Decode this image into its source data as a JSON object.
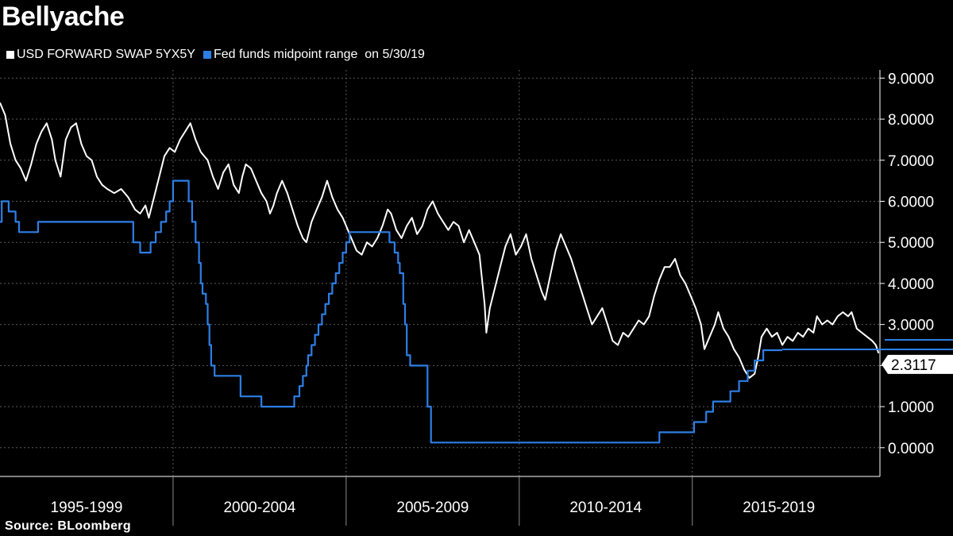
{
  "chart_data": {
    "type": "line",
    "title": "Bellyache",
    "source": "Source:  BLoomberg",
    "x_range": [
      1994.0,
      2019.42
    ],
    "ylim": [
      -0.7,
      9.2
    ],
    "y_ticks": [
      "9.0000",
      "8.0000",
      "7.0000",
      "6.0000",
      "5.0000",
      "4.0000",
      "3.0000",
      "2.0000",
      "1.0000",
      "0.0000"
    ],
    "x_categories": [
      {
        "label": "1995-1999",
        "start": 1994.0,
        "end": 1999.0
      },
      {
        "label": "2000-2004",
        "start": 1999.0,
        "end": 2004.0
      },
      {
        "label": "2005-2009",
        "start": 2004.0,
        "end": 2009.0
      },
      {
        "label": "2010-2014",
        "start": 2009.0,
        "end": 2014.0
      },
      {
        "label": "2015-2019",
        "start": 2014.0,
        "end": 2019.0
      }
    ],
    "last_value_label": "2.3117",
    "series": [
      {
        "name": "USD FORWARD SWAP 5YX5Y",
        "color": "#ffffff",
        "style": "line",
        "points": [
          [
            1994.0,
            8.4
          ],
          [
            1994.15,
            8.1
          ],
          [
            1994.3,
            7.4
          ],
          [
            1994.45,
            7.0
          ],
          [
            1994.6,
            6.8
          ],
          [
            1994.75,
            6.5
          ],
          [
            1994.9,
            6.9
          ],
          [
            1995.05,
            7.4
          ],
          [
            1995.2,
            7.7
          ],
          [
            1995.35,
            7.9
          ],
          [
            1995.5,
            7.5
          ],
          [
            1995.6,
            7.0
          ],
          [
            1995.75,
            6.6
          ],
          [
            1995.9,
            7.5
          ],
          [
            1996.05,
            7.8
          ],
          [
            1996.2,
            7.9
          ],
          [
            1996.35,
            7.4
          ],
          [
            1996.5,
            7.1
          ],
          [
            1996.65,
            7.0
          ],
          [
            1996.8,
            6.6
          ],
          [
            1996.95,
            6.4
          ],
          [
            1997.1,
            6.3
          ],
          [
            1997.3,
            6.2
          ],
          [
            1997.5,
            6.3
          ],
          [
            1997.7,
            6.1
          ],
          [
            1997.9,
            5.8
          ],
          [
            1998.05,
            5.7
          ],
          [
            1998.2,
            5.9
          ],
          [
            1998.3,
            5.6
          ],
          [
            1998.45,
            6.1
          ],
          [
            1998.6,
            6.6
          ],
          [
            1998.75,
            7.1
          ],
          [
            1998.9,
            7.3
          ],
          [
            1999.05,
            7.2
          ],
          [
            1999.2,
            7.5
          ],
          [
            1999.35,
            7.7
          ],
          [
            1999.5,
            7.9
          ],
          [
            1999.65,
            7.5
          ],
          [
            1999.8,
            7.2
          ],
          [
            2000.0,
            7.0
          ],
          [
            2000.15,
            6.6
          ],
          [
            2000.3,
            6.3
          ],
          [
            2000.45,
            6.7
          ],
          [
            2000.6,
            6.9
          ],
          [
            2000.75,
            6.4
          ],
          [
            2000.9,
            6.2
          ],
          [
            2001.0,
            6.6
          ],
          [
            2001.1,
            6.9
          ],
          [
            2001.25,
            6.8
          ],
          [
            2001.4,
            6.5
          ],
          [
            2001.55,
            6.2
          ],
          [
            2001.7,
            6.0
          ],
          [
            2001.8,
            5.7
          ],
          [
            2001.9,
            5.9
          ],
          [
            2002.0,
            6.2
          ],
          [
            2002.15,
            6.5
          ],
          [
            2002.3,
            6.2
          ],
          [
            2002.45,
            5.8
          ],
          [
            2002.6,
            5.4
          ],
          [
            2002.75,
            5.1
          ],
          [
            2002.85,
            5.0
          ],
          [
            2003.0,
            5.5
          ],
          [
            2003.15,
            5.8
          ],
          [
            2003.3,
            6.1
          ],
          [
            2003.45,
            6.5
          ],
          [
            2003.6,
            6.1
          ],
          [
            2003.75,
            5.8
          ],
          [
            2003.9,
            5.6
          ],
          [
            2004.0,
            5.4
          ],
          [
            2004.15,
            5.1
          ],
          [
            2004.3,
            4.8
          ],
          [
            2004.45,
            4.7
          ],
          [
            2004.6,
            5.0
          ],
          [
            2004.75,
            4.9
          ],
          [
            2004.9,
            5.1
          ],
          [
            2005.05,
            5.4
          ],
          [
            2005.2,
            5.8
          ],
          [
            2005.3,
            5.7
          ],
          [
            2005.45,
            5.3
          ],
          [
            2005.6,
            5.1
          ],
          [
            2005.75,
            5.4
          ],
          [
            2005.9,
            5.6
          ],
          [
            2006.05,
            5.2
          ],
          [
            2006.2,
            5.4
          ],
          [
            2006.35,
            5.8
          ],
          [
            2006.5,
            6.0
          ],
          [
            2006.65,
            5.7
          ],
          [
            2006.8,
            5.5
          ],
          [
            2006.95,
            5.3
          ],
          [
            2007.1,
            5.5
          ],
          [
            2007.25,
            5.4
          ],
          [
            2007.4,
            5.0
          ],
          [
            2007.55,
            5.3
          ],
          [
            2007.7,
            5.0
          ],
          [
            2007.85,
            4.7
          ],
          [
            2008.0,
            3.5
          ],
          [
            2008.05,
            2.8
          ],
          [
            2008.15,
            3.4
          ],
          [
            2008.3,
            3.9
          ],
          [
            2008.45,
            4.4
          ],
          [
            2008.6,
            4.9
          ],
          [
            2008.75,
            5.2
          ],
          [
            2008.9,
            4.7
          ],
          [
            2009.05,
            4.9
          ],
          [
            2009.2,
            5.2
          ],
          [
            2009.35,
            4.6
          ],
          [
            2009.5,
            4.2
          ],
          [
            2009.65,
            3.8
          ],
          [
            2009.75,
            3.6
          ],
          [
            2009.9,
            4.2
          ],
          [
            2010.05,
            4.8
          ],
          [
            2010.2,
            5.2
          ],
          [
            2010.35,
            4.9
          ],
          [
            2010.5,
            4.6
          ],
          [
            2010.65,
            4.2
          ],
          [
            2010.8,
            3.8
          ],
          [
            2010.95,
            3.4
          ],
          [
            2011.1,
            3.0
          ],
          [
            2011.25,
            3.2
          ],
          [
            2011.4,
            3.4
          ],
          [
            2011.55,
            3.0
          ],
          [
            2011.7,
            2.6
          ],
          [
            2011.85,
            2.5
          ],
          [
            2012.0,
            2.8
          ],
          [
            2012.15,
            2.7
          ],
          [
            2012.3,
            2.9
          ],
          [
            2012.45,
            3.1
          ],
          [
            2012.6,
            3.0
          ],
          [
            2012.75,
            3.2
          ],
          [
            2012.9,
            3.7
          ],
          [
            2013.05,
            4.1
          ],
          [
            2013.2,
            4.4
          ],
          [
            2013.35,
            4.4
          ],
          [
            2013.5,
            4.6
          ],
          [
            2013.65,
            4.2
          ],
          [
            2013.8,
            4.0
          ],
          [
            2013.95,
            3.7
          ],
          [
            2014.1,
            3.4
          ],
          [
            2014.25,
            3.0
          ],
          [
            2014.35,
            2.4
          ],
          [
            2014.5,
            2.7
          ],
          [
            2014.65,
            3.0
          ],
          [
            2014.75,
            3.3
          ],
          [
            2014.9,
            2.9
          ],
          [
            2015.05,
            2.7
          ],
          [
            2015.2,
            2.4
          ],
          [
            2015.35,
            2.2
          ],
          [
            2015.5,
            1.9
          ],
          [
            2015.65,
            1.7
          ],
          [
            2015.8,
            1.8
          ],
          [
            2015.9,
            2.2
          ],
          [
            2016.0,
            2.7
          ],
          [
            2016.15,
            2.9
          ],
          [
            2016.3,
            2.7
          ],
          [
            2016.45,
            2.8
          ],
          [
            2016.6,
            2.5
          ],
          [
            2016.75,
            2.7
          ],
          [
            2016.9,
            2.6
          ],
          [
            2017.05,
            2.8
          ],
          [
            2017.2,
            2.7
          ],
          [
            2017.35,
            2.9
          ],
          [
            2017.5,
            2.8
          ],
          [
            2017.6,
            3.2
          ],
          [
            2017.75,
            3.0
          ],
          [
            2017.9,
            3.1
          ],
          [
            2018.05,
            3.0
          ],
          [
            2018.2,
            3.2
          ],
          [
            2018.35,
            3.3
          ],
          [
            2018.5,
            3.2
          ],
          [
            2018.6,
            3.3
          ],
          [
            2018.75,
            2.9
          ],
          [
            2018.9,
            2.8
          ],
          [
            2019.05,
            2.7
          ],
          [
            2019.2,
            2.6
          ],
          [
            2019.3,
            2.5
          ],
          [
            2019.38,
            2.3
          ]
        ]
      },
      {
        "name": "Fed funds midpoint range  on 5/30/19",
        "color": "#2d7fe6",
        "style": "step",
        "points": [
          [
            1994.0,
            5.5
          ],
          [
            1994.05,
            6.0
          ],
          [
            1994.25,
            5.75
          ],
          [
            1994.45,
            5.5
          ],
          [
            1994.55,
            5.25
          ],
          [
            1995.1,
            5.5
          ],
          [
            1997.85,
            5.0
          ],
          [
            1998.05,
            4.75
          ],
          [
            1998.35,
            5.0
          ],
          [
            1998.5,
            5.25
          ],
          [
            1998.65,
            5.5
          ],
          [
            1998.8,
            5.75
          ],
          [
            1998.9,
            6.0
          ],
          [
            1999.0,
            6.5
          ],
          [
            1999.45,
            6.0
          ],
          [
            1999.55,
            5.5
          ],
          [
            1999.65,
            5.0
          ],
          [
            1999.75,
            4.5
          ],
          [
            1999.8,
            4.0
          ],
          [
            1999.85,
            3.75
          ],
          [
            1999.95,
            3.5
          ],
          [
            2000.0,
            3.0
          ],
          [
            2000.05,
            2.5
          ],
          [
            2000.1,
            2.0
          ],
          [
            2000.2,
            1.75
          ],
          [
            2000.95,
            1.25
          ],
          [
            2001.55,
            1.0
          ],
          [
            2002.5,
            1.25
          ],
          [
            2002.65,
            1.5
          ],
          [
            2002.75,
            1.75
          ],
          [
            2002.85,
            2.0
          ],
          [
            2002.9,
            2.25
          ],
          [
            2003.0,
            2.5
          ],
          [
            2003.1,
            2.75
          ],
          [
            2003.2,
            3.0
          ],
          [
            2003.3,
            3.25
          ],
          [
            2003.4,
            3.5
          ],
          [
            2003.5,
            3.75
          ],
          [
            2003.6,
            4.0
          ],
          [
            2003.7,
            4.25
          ],
          [
            2003.8,
            4.5
          ],
          [
            2003.9,
            4.75
          ],
          [
            2004.0,
            5.0
          ],
          [
            2004.1,
            5.25
          ],
          [
            2005.25,
            5.0
          ],
          [
            2005.4,
            4.75
          ],
          [
            2005.5,
            4.5
          ],
          [
            2005.55,
            4.25
          ],
          [
            2005.65,
            3.5
          ],
          [
            2005.7,
            3.0
          ],
          [
            2005.75,
            2.25
          ],
          [
            2005.85,
            2.0
          ],
          [
            2006.35,
            1.0
          ],
          [
            2006.45,
            0.125
          ],
          [
            2013.05,
            0.375
          ],
          [
            2014.05,
            0.625
          ],
          [
            2014.4,
            0.875
          ],
          [
            2014.6,
            1.125
          ],
          [
            2015.1,
            1.375
          ],
          [
            2015.35,
            1.625
          ],
          [
            2015.6,
            1.875
          ],
          [
            2015.8,
            2.125
          ],
          [
            2016.05,
            2.375
          ],
          [
            2016.6,
            2.375
          ]
        ]
      }
    ]
  }
}
